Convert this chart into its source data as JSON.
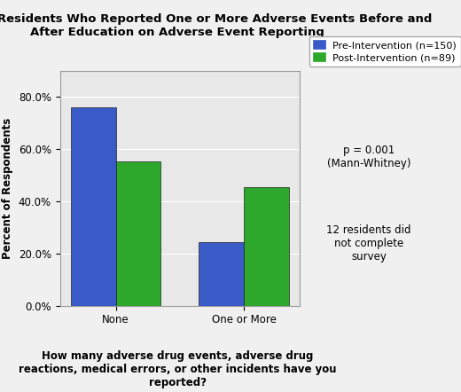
{
  "title": "Number of Residents Who Reported One or More Adverse Events Before and\nAfter Education on Adverse Event Reporting",
  "xlabel": "How many adverse drug events, adverse drug\nreactions, medical errors, or other incidents have you\nreported?",
  "ylabel": "Percent of Respondents",
  "categories": [
    "None",
    "One or More"
  ],
  "pre_values": [
    0.76,
    0.245
  ],
  "post_values": [
    0.552,
    0.455
  ],
  "pre_color": "#3a5bc7",
  "post_color": "#2da82d",
  "pre_label": "Pre-Intervention (n=150)",
  "post_label": "Post-Intervention (n=89)",
  "ylim": [
    0,
    0.9
  ],
  "yticks": [
    0.0,
    0.2,
    0.4,
    0.6,
    0.8
  ],
  "ytick_labels": [
    "0.0%",
    "20.0%",
    "40.0%",
    "60.0%",
    "80.0%"
  ],
  "bar_width": 0.35,
  "annotation1": "p = 0.001\n(Mann-Whitney)",
  "annotation2": "12 residents did\nnot complete\nsurvey",
  "plot_bg_color": "#e8e8e8",
  "fig_bg_color": "#f0f0f0",
  "title_fontsize": 9.5,
  "axis_label_fontsize": 8.5,
  "tick_fontsize": 8.5,
  "legend_fontsize": 8.0,
  "annot_fontsize": 8.5
}
